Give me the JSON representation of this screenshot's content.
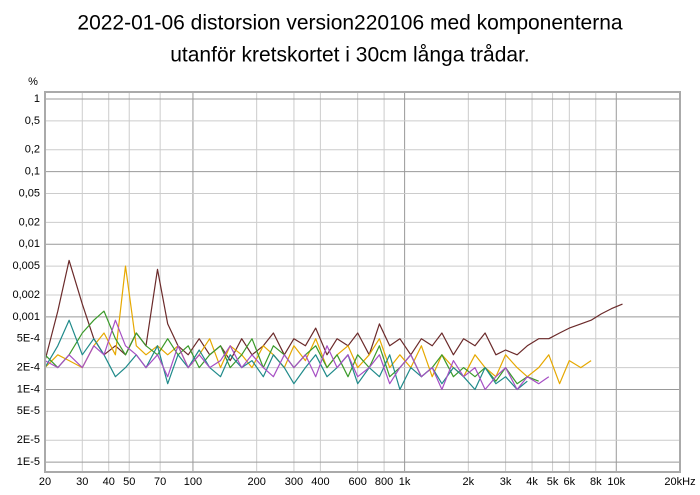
{
  "chart_data": {
    "type": "line",
    "title": [
      "2022-01-06 distorsion version220106 med komponenterna",
      "utanför kretskortet i 30cm långa trådar."
    ],
    "y_label": "%",
    "log_x": true,
    "log_y": true,
    "grid": true,
    "xlim": [
      20,
      20000
    ],
    "ylim": [
      7.3e-06,
      1.25
    ],
    "xticks": [
      20,
      30,
      40,
      50,
      70,
      100,
      200,
      300,
      400,
      600,
      800,
      {
        "value": 1000,
        "label": "1k"
      },
      {
        "value": 2000,
        "label": "2k"
      },
      {
        "value": 3000,
        "label": "3k"
      },
      {
        "value": 4000,
        "label": "4k"
      },
      {
        "value": 5000,
        "label": "5k"
      },
      {
        "value": 6000,
        "label": "6k"
      },
      {
        "value": 8000,
        "label": "8k"
      },
      {
        "value": 10000,
        "label": "10k"
      },
      {
        "value": 20000,
        "label": "20kHz"
      }
    ],
    "yticks": [
      1,
      {
        "value": 0.5,
        "label": "0,5"
      },
      {
        "value": 0.2,
        "label": "0,2"
      },
      {
        "value": 0.1,
        "label": "0,1"
      },
      {
        "value": 0.05,
        "label": "0,05"
      },
      {
        "value": 0.02,
        "label": "0,02"
      },
      {
        "value": 0.01,
        "label": "0,01"
      },
      {
        "value": 0.005,
        "label": "0,005"
      },
      {
        "value": 0.002,
        "label": "0,002"
      },
      {
        "value": 0.001,
        "label": "0,001"
      },
      {
        "value": 0.0005,
        "label": "5E-4"
      },
      {
        "value": 0.0002,
        "label": "2E-4"
      },
      {
        "value": 0.0001,
        "label": "1E-4"
      },
      {
        "value": 5e-05,
        "label": "5E-5"
      },
      {
        "value": 2e-05,
        "label": "2E-5"
      },
      {
        "value": 1e-05,
        "label": "1E-5"
      }
    ],
    "x": [
      20,
      23,
      26,
      30,
      34,
      38,
      43,
      48,
      54,
      60,
      68,
      76,
      85,
      95,
      107,
      120,
      135,
      150,
      170,
      190,
      215,
      240,
      270,
      300,
      340,
      380,
      430,
      480,
      540,
      600,
      680,
      760,
      850,
      950,
      1070,
      1200,
      1350,
      1500,
      1700,
      1900,
      2150,
      2400,
      2700,
      3000,
      3400,
      3800,
      4300,
      4800,
      5400,
      6000,
      6800,
      7600,
      8500,
      9500,
      10700
    ],
    "series": [
      {
        "color": "#6b2a2a",
        "values": [
          0.00025,
          0.0012,
          0.006,
          0.0015,
          0.0005,
          0.0003,
          0.0004,
          0.0003,
          0.0006,
          0.0004,
          0.0045,
          0.0008,
          0.0004,
          0.0003,
          0.0005,
          0.0003,
          0.0004,
          0.00025,
          0.0005,
          0.0003,
          0.0004,
          0.0006,
          0.0003,
          0.0005,
          0.0004,
          0.0007,
          0.0003,
          0.0005,
          0.0004,
          0.0006,
          0.0003,
          0.0008,
          0.0004,
          0.0005,
          0.0003,
          0.0005,
          0.0004,
          0.0006,
          0.0003,
          0.0005,
          0.0004,
          0.0006,
          0.0003,
          0.00035,
          0.0003,
          0.0004,
          0.0005,
          0.0005,
          0.0006,
          0.0007,
          0.0008,
          0.0009,
          0.0011,
          0.0013,
          0.0015
        ]
      },
      {
        "color": "#e6a800",
        "values": [
          0.0002,
          0.0003,
          0.00025,
          0.0002,
          0.0004,
          0.0006,
          0.0003,
          0.005,
          0.0004,
          0.0003,
          0.0004,
          0.0003,
          0.0004,
          0.0002,
          0.0003,
          0.0005,
          0.0002,
          0.0004,
          0.0003,
          0.0002,
          0.0004,
          0.0003,
          0.0002,
          0.0004,
          0.00025,
          0.0005,
          0.0002,
          0.0003,
          0.0004,
          0.0002,
          0.0003,
          0.0005,
          0.0002,
          0.0003,
          0.0002,
          0.0004,
          0.00015,
          0.0003,
          0.0002,
          0.00015,
          0.0003,
          0.0002,
          0.00015,
          0.0003,
          0.0002,
          0.00015,
          0.0002,
          0.0003,
          0.00012,
          0.00025,
          0.0002,
          0.00025,
          null,
          null,
          null
        ]
      },
      {
        "color": "#3a9a2a",
        "values": [
          0.0003,
          0.0002,
          0.0003,
          0.0006,
          0.0009,
          0.0012,
          0.0005,
          0.0003,
          0.0006,
          0.0004,
          0.0003,
          0.0005,
          0.0003,
          0.0004,
          0.0002,
          0.0003,
          0.0004,
          0.0002,
          0.0003,
          0.0005,
          0.0002,
          0.0004,
          0.0003,
          0.0002,
          0.0003,
          0.0004,
          0.0002,
          0.0003,
          0.00015,
          0.0003,
          0.0002,
          0.0004,
          0.00015,
          0.0002,
          0.0003,
          0.00015,
          0.0002,
          0.0003,
          0.00015,
          0.0002,
          0.00015,
          0.0002,
          0.00013,
          0.0002,
          0.00012,
          0.00015,
          0.00013,
          null,
          null,
          null,
          null,
          null,
          null,
          null,
          null
        ]
      },
      {
        "color": "#1f8a8a",
        "values": [
          0.0002,
          0.0004,
          0.0009,
          0.0003,
          0.0005,
          0.0003,
          0.00015,
          0.0002,
          0.0003,
          0.0002,
          0.0004,
          0.00012,
          0.0003,
          0.0002,
          0.00035,
          0.0002,
          0.00015,
          0.0003,
          0.0002,
          0.00025,
          0.00015,
          0.0003,
          0.0002,
          0.00012,
          0.0002,
          0.0003,
          0.00015,
          0.0002,
          0.0003,
          0.00012,
          0.0002,
          0.00015,
          0.0003,
          0.0001,
          0.0002,
          0.00015,
          0.0002,
          0.00012,
          0.0002,
          0.00015,
          0.0001,
          0.0002,
          0.00012,
          0.00015,
          0.0001,
          0.00013,
          null,
          null,
          null,
          null,
          null,
          null,
          null,
          null,
          null
        ]
      },
      {
        "color": "#a64fc4",
        "values": [
          0.00025,
          0.0002,
          0.0003,
          0.0002,
          0.0004,
          0.0003,
          0.0009,
          0.0004,
          0.0003,
          0.0002,
          0.0003,
          0.00015,
          0.0004,
          0.0002,
          0.0003,
          0.0002,
          0.00025,
          0.0004,
          0.0002,
          0.0003,
          0.0002,
          0.00015,
          0.0003,
          0.0002,
          0.0003,
          0.00015,
          0.0004,
          0.0002,
          0.0003,
          0.00015,
          0.0002,
          0.0003,
          0.00012,
          0.0002,
          0.0003,
          0.00015,
          0.0002,
          0.0001,
          0.00025,
          0.00015,
          0.0002,
          0.0001,
          0.00015,
          0.0002,
          0.0001,
          0.00015,
          0.00012,
          0.00015,
          null,
          null,
          null,
          null,
          null,
          null,
          null
        ]
      }
    ]
  }
}
